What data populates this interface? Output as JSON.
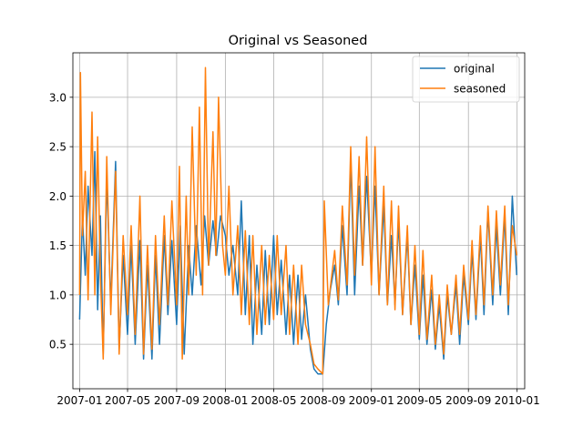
{
  "chart_data": {
    "type": "line",
    "title": "Original vs Seasoned",
    "xlabel": "",
    "ylabel": "",
    "grid": true,
    "legend_position": "top-right",
    "x_range": [
      "2006-12-15",
      "2010-01-20"
    ],
    "ylim": [
      0.05,
      3.45
    ],
    "x_ticks": [
      {
        "date": "2007-01-01",
        "label": "2007-01"
      },
      {
        "date": "2007-05-01",
        "label": "2007-05"
      },
      {
        "date": "2007-09-01",
        "label": "2007-09"
      },
      {
        "date": "2008-01-01",
        "label": "2008-01"
      },
      {
        "date": "2008-05-01",
        "label": "2008-05"
      },
      {
        "date": "2008-09-01",
        "label": "2008-09"
      },
      {
        "date": "2009-01-01",
        "label": "2009-01"
      },
      {
        "date": "2009-05-01",
        "label": "2009-05"
      },
      {
        "date": "2009-09-01",
        "label": "2009-09"
      },
      {
        "date": "2010-01-01",
        "label": "2010-01"
      }
    ],
    "y_ticks": [
      {
        "value": 0.5,
        "label": "0.5"
      },
      {
        "value": 1.0,
        "label": "1.0"
      },
      {
        "value": 1.5,
        "label": "1.5"
      },
      {
        "value": 2.0,
        "label": "2.0"
      },
      {
        "value": 2.5,
        "label": "2.5"
      },
      {
        "value": 3.0,
        "label": "3.0"
      }
    ],
    "series": [
      {
        "name": "original",
        "color": "#1f77b4",
        "points": [
          [
            "2007-01-01",
            0.75
          ],
          [
            "2007-01-08",
            1.8
          ],
          [
            "2007-01-15",
            1.2
          ],
          [
            "2007-01-22",
            2.1
          ],
          [
            "2007-02-01",
            1.4
          ],
          [
            "2007-02-08",
            2.45
          ],
          [
            "2007-02-15",
            0.85
          ],
          [
            "2007-02-22",
            1.8
          ],
          [
            "2007-03-01",
            0.4
          ],
          [
            "2007-03-10",
            2.2
          ],
          [
            "2007-03-20",
            0.9
          ],
          [
            "2007-04-01",
            2.35
          ],
          [
            "2007-04-10",
            0.45
          ],
          [
            "2007-04-20",
            1.4
          ],
          [
            "2007-05-01",
            0.6
          ],
          [
            "2007-05-10",
            1.5
          ],
          [
            "2007-05-20",
            0.5
          ],
          [
            "2007-06-01",
            1.55
          ],
          [
            "2007-06-10",
            0.35
          ],
          [
            "2007-06-20",
            1.3
          ],
          [
            "2007-07-01",
            0.35
          ],
          [
            "2007-07-10",
            1.4
          ],
          [
            "2007-07-20",
            0.5
          ],
          [
            "2007-08-01",
            1.6
          ],
          [
            "2007-08-10",
            0.8
          ],
          [
            "2007-08-20",
            1.55
          ],
          [
            "2007-09-01",
            0.7
          ],
          [
            "2007-09-10",
            1.7
          ],
          [
            "2007-09-20",
            0.4
          ],
          [
            "2007-10-01",
            1.5
          ],
          [
            "2007-10-10",
            1.0
          ],
          [
            "2007-10-20",
            1.7
          ],
          [
            "2007-11-01",
            1.1
          ],
          [
            "2007-11-10",
            1.8
          ],
          [
            "2007-11-20",
            1.3
          ],
          [
            "2007-12-01",
            1.75
          ],
          [
            "2007-12-10",
            1.4
          ],
          [
            "2007-12-20",
            1.8
          ],
          [
            "2008-01-01",
            1.6
          ],
          [
            "2008-01-10",
            1.2
          ],
          [
            "2008-01-20",
            1.5
          ],
          [
            "2008-02-01",
            1.0
          ],
          [
            "2008-02-10",
            1.95
          ],
          [
            "2008-02-20",
            0.8
          ],
          [
            "2008-03-01",
            1.6
          ],
          [
            "2008-03-10",
            0.5
          ],
          [
            "2008-03-20",
            1.3
          ],
          [
            "2008-04-01",
            0.6
          ],
          [
            "2008-04-10",
            1.45
          ],
          [
            "2008-04-20",
            0.7
          ],
          [
            "2008-05-01",
            1.6
          ],
          [
            "2008-05-10",
            0.8
          ],
          [
            "2008-05-20",
            1.35
          ],
          [
            "2008-06-01",
            0.6
          ],
          [
            "2008-06-10",
            1.2
          ],
          [
            "2008-06-20",
            0.5
          ],
          [
            "2008-07-01",
            1.2
          ],
          [
            "2008-07-10",
            0.55
          ],
          [
            "2008-07-20",
            1.0
          ],
          [
            "2008-08-01",
            0.45
          ],
          [
            "2008-08-10",
            0.25
          ],
          [
            "2008-08-20",
            0.2
          ],
          [
            "2008-09-01",
            0.2
          ],
          [
            "2008-09-10",
            0.7
          ],
          [
            "2008-09-20",
            1.05
          ],
          [
            "2008-10-01",
            1.3
          ],
          [
            "2008-10-10",
            0.9
          ],
          [
            "2008-10-20",
            1.7
          ],
          [
            "2008-11-01",
            1.0
          ],
          [
            "2008-11-10",
            2.35
          ],
          [
            "2008-11-20",
            1.0
          ],
          [
            "2008-12-01",
            2.1
          ],
          [
            "2008-12-10",
            1.3
          ],
          [
            "2008-12-20",
            2.2
          ],
          [
            "2009-01-01",
            1.2
          ],
          [
            "2009-01-10",
            2.1
          ],
          [
            "2009-01-20",
            1.0
          ],
          [
            "2009-02-01",
            1.9
          ],
          [
            "2009-02-10",
            0.9
          ],
          [
            "2009-02-20",
            1.6
          ],
          [
            "2009-03-01",
            0.9
          ],
          [
            "2009-03-10",
            1.75
          ],
          [
            "2009-03-20",
            0.8
          ],
          [
            "2009-04-01",
            1.6
          ],
          [
            "2009-04-10",
            0.7
          ],
          [
            "2009-04-20",
            1.3
          ],
          [
            "2009-05-01",
            0.55
          ],
          [
            "2009-05-10",
            1.2
          ],
          [
            "2009-05-20",
            0.5
          ],
          [
            "2009-06-01",
            1.05
          ],
          [
            "2009-06-10",
            0.45
          ],
          [
            "2009-06-20",
            0.9
          ],
          [
            "2009-07-01",
            0.35
          ],
          [
            "2009-07-10",
            1.0
          ],
          [
            "2009-07-20",
            0.6
          ],
          [
            "2009-08-01",
            1.1
          ],
          [
            "2009-08-10",
            0.5
          ],
          [
            "2009-08-20",
            1.2
          ],
          [
            "2009-09-01",
            0.7
          ],
          [
            "2009-09-10",
            1.45
          ],
          [
            "2009-09-20",
            0.75
          ],
          [
            "2009-10-01",
            1.6
          ],
          [
            "2009-10-10",
            0.8
          ],
          [
            "2009-10-20",
            1.85
          ],
          [
            "2009-11-01",
            0.9
          ],
          [
            "2009-11-10",
            1.7
          ],
          [
            "2009-11-20",
            1.0
          ],
          [
            "2009-12-01",
            1.8
          ],
          [
            "2009-12-10",
            0.8
          ],
          [
            "2009-12-20",
            2.0
          ],
          [
            "2009-12-31",
            1.2
          ]
        ]
      },
      {
        "name": "seasoned",
        "color": "#ff7f0e",
        "points": [
          [
            "2007-01-01",
            1.0
          ],
          [
            "2007-01-03",
            3.25
          ],
          [
            "2007-01-08",
            1.6
          ],
          [
            "2007-01-15",
            2.25
          ],
          [
            "2007-01-22",
            0.95
          ],
          [
            "2007-02-01",
            2.85
          ],
          [
            "2007-02-08",
            1.0
          ],
          [
            "2007-02-15",
            2.6
          ],
          [
            "2007-02-22",
            1.2
          ],
          [
            "2007-03-01",
            0.35
          ],
          [
            "2007-03-10",
            2.4
          ],
          [
            "2007-03-20",
            0.8
          ],
          [
            "2007-04-01",
            2.25
          ],
          [
            "2007-04-10",
            0.4
          ],
          [
            "2007-04-20",
            1.6
          ],
          [
            "2007-05-01",
            0.8
          ],
          [
            "2007-05-10",
            1.7
          ],
          [
            "2007-05-20",
            0.6
          ],
          [
            "2007-06-01",
            2.0
          ],
          [
            "2007-06-10",
            0.4
          ],
          [
            "2007-06-20",
            1.5
          ],
          [
            "2007-07-01",
            0.45
          ],
          [
            "2007-07-10",
            1.6
          ],
          [
            "2007-07-20",
            0.7
          ],
          [
            "2007-08-01",
            1.8
          ],
          [
            "2007-08-10",
            0.9
          ],
          [
            "2007-08-20",
            1.95
          ],
          [
            "2007-09-01",
            0.9
          ],
          [
            "2007-09-08",
            2.3
          ],
          [
            "2007-09-15",
            0.35
          ],
          [
            "2007-09-25",
            2.0
          ],
          [
            "2007-10-01",
            1.0
          ],
          [
            "2007-10-10",
            2.7
          ],
          [
            "2007-10-20",
            1.2
          ],
          [
            "2007-10-28",
            2.9
          ],
          [
            "2007-11-05",
            1.0
          ],
          [
            "2007-11-12",
            3.3
          ],
          [
            "2007-11-20",
            1.3
          ],
          [
            "2007-12-01",
            2.65
          ],
          [
            "2007-12-08",
            1.4
          ],
          [
            "2007-12-15",
            3.0
          ],
          [
            "2007-12-25",
            1.5
          ],
          [
            "2008-01-01",
            1.2
          ],
          [
            "2008-01-10",
            2.1
          ],
          [
            "2008-01-20",
            1.0
          ],
          [
            "2008-02-01",
            1.7
          ],
          [
            "2008-02-10",
            0.8
          ],
          [
            "2008-02-20",
            1.65
          ],
          [
            "2008-03-01",
            0.7
          ],
          [
            "2008-03-10",
            1.6
          ],
          [
            "2008-03-20",
            0.6
          ],
          [
            "2008-04-01",
            1.5
          ],
          [
            "2008-04-10",
            0.7
          ],
          [
            "2008-04-20",
            1.4
          ],
          [
            "2008-05-01",
            0.75
          ],
          [
            "2008-05-10",
            1.6
          ],
          [
            "2008-05-20",
            0.8
          ],
          [
            "2008-06-01",
            1.5
          ],
          [
            "2008-06-10",
            0.6
          ],
          [
            "2008-06-20",
            1.3
          ],
          [
            "2008-07-01",
            0.5
          ],
          [
            "2008-07-10",
            1.3
          ],
          [
            "2008-07-20",
            0.7
          ],
          [
            "2008-08-01",
            0.5
          ],
          [
            "2008-08-10",
            0.3
          ],
          [
            "2008-08-20",
            0.25
          ],
          [
            "2008-09-01",
            0.2
          ],
          [
            "2008-09-05",
            1.95
          ],
          [
            "2008-09-15",
            0.9
          ],
          [
            "2008-10-01",
            1.45
          ],
          [
            "2008-10-10",
            0.95
          ],
          [
            "2008-10-20",
            1.9
          ],
          [
            "2008-11-01",
            1.1
          ],
          [
            "2008-11-10",
            2.5
          ],
          [
            "2008-11-20",
            1.2
          ],
          [
            "2008-12-01",
            2.4
          ],
          [
            "2008-12-10",
            1.3
          ],
          [
            "2008-12-20",
            2.6
          ],
          [
            "2009-01-01",
            1.1
          ],
          [
            "2009-01-10",
            2.5
          ],
          [
            "2009-01-20",
            1.0
          ],
          [
            "2009-02-01",
            2.1
          ],
          [
            "2009-02-10",
            0.9
          ],
          [
            "2009-02-20",
            1.95
          ],
          [
            "2009-03-01",
            0.85
          ],
          [
            "2009-03-10",
            1.9
          ],
          [
            "2009-03-20",
            0.8
          ],
          [
            "2009-04-01",
            1.7
          ],
          [
            "2009-04-10",
            0.7
          ],
          [
            "2009-04-20",
            1.5
          ],
          [
            "2009-05-01",
            0.6
          ],
          [
            "2009-05-10",
            1.45
          ],
          [
            "2009-05-20",
            0.55
          ],
          [
            "2009-06-01",
            1.2
          ],
          [
            "2009-06-10",
            0.5
          ],
          [
            "2009-06-20",
            1.0
          ],
          [
            "2009-07-01",
            0.4
          ],
          [
            "2009-07-10",
            1.1
          ],
          [
            "2009-07-20",
            0.6
          ],
          [
            "2009-08-01",
            1.2
          ],
          [
            "2009-08-10",
            0.6
          ],
          [
            "2009-08-20",
            1.3
          ],
          [
            "2009-09-01",
            0.75
          ],
          [
            "2009-09-10",
            1.55
          ],
          [
            "2009-09-20",
            0.8
          ],
          [
            "2009-10-01",
            1.7
          ],
          [
            "2009-10-10",
            0.9
          ],
          [
            "2009-10-20",
            1.9
          ],
          [
            "2009-11-01",
            1.0
          ],
          [
            "2009-11-10",
            1.85
          ],
          [
            "2009-11-20",
            1.1
          ],
          [
            "2009-12-01",
            1.9
          ],
          [
            "2009-12-10",
            0.9
          ],
          [
            "2009-12-20",
            1.7
          ],
          [
            "2009-12-31",
            1.4
          ]
        ]
      }
    ]
  }
}
